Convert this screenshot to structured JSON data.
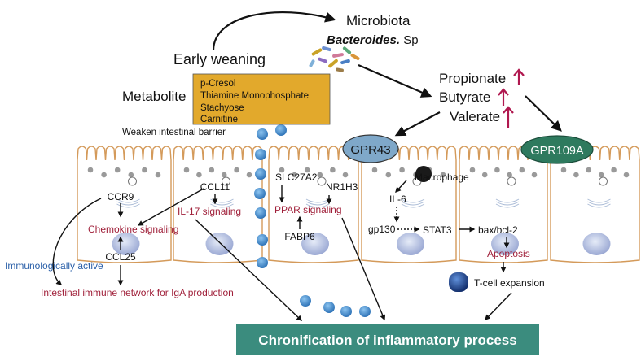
{
  "header": {
    "early_weaning": "Early weaning",
    "microbiota": "Microbiota",
    "bacteroides": "Bacteroides.",
    "sp": " Sp"
  },
  "metabolite": {
    "label": "Metabolite",
    "items": [
      "p-Cresol",
      "Thiamine Monophosphate",
      "Stachyose",
      "Carnitine"
    ]
  },
  "scfa": {
    "items": [
      "Propionate",
      "Butyrate",
      "Valerate"
    ]
  },
  "barrier_label": "Weaken intestinal barrier",
  "receptors": {
    "gpr43": "GPR43",
    "gpr109a": "GPR109A"
  },
  "cell1": {
    "ccr9": "CCR9",
    "chemokine": "Chemokine signaling",
    "ccl25": "CCL25"
  },
  "cell2": {
    "ccl11": "CCL11",
    "il17": "IL-17 signaling"
  },
  "cell3": {
    "slc27a2": "SLC27A2",
    "nr1h3": "NR1H3",
    "ppar": "PPAR signaling",
    "fabp6": "FABP6"
  },
  "cell4": {
    "macrophage": "Macrophage",
    "il6": "IL-6",
    "gp130": "gp130",
    "stat3": "STAT3",
    "bax": "bax/bcl-2",
    "apoptosis": "Apoptosis"
  },
  "tcell": "T-cell expansion",
  "immuno_active": "Immunologically active",
  "iga_network": "Intestinal immune network for IgA production",
  "outcome": "Chronification of inflammatory process",
  "colors": {
    "red_text": "#a0203a",
    "blue_text": "#2a5fa8",
    "cell_border": "#d49a5a",
    "metabolite_box": "#e2a92c",
    "gpr43_fill": "#7fa8c9",
    "gpr109a_fill": "#2e7a5e",
    "outcome_fill": "#3b8c7e",
    "dot_fill": "#4f93d1",
    "arrow_red": "#b0184f"
  }
}
